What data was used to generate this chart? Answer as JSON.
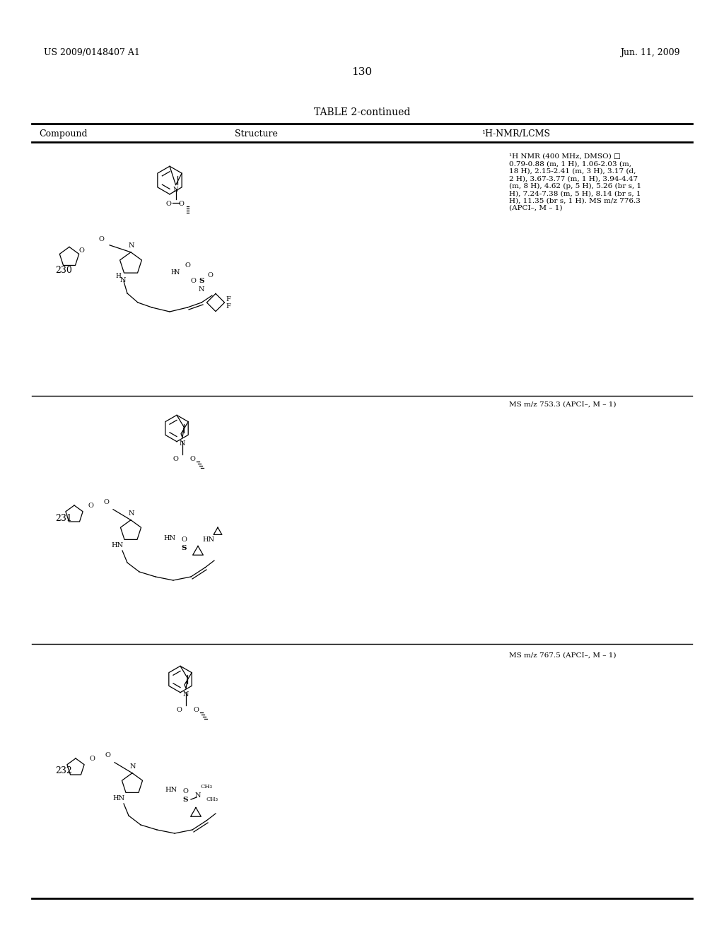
{
  "page_number": "130",
  "header_left": "US 2009/0148407 A1",
  "header_right": "Jun. 11, 2009",
  "table_title": "TABLE 2-continued",
  "col_headers": [
    "Compound",
    "Structure",
    "¹H-NMR/LCMS"
  ],
  "background_color": "#ffffff",
  "text_color": "#000000",
  "compounds": [
    {
      "number": "230",
      "nmr_text": "¹H NMR (400 MHz, DMSO) □\n0.79-0.88 (m, 1 H), 1.06-2.03 (m,\n18 H), 2.15-2.41 (m, 3 H), 3.17 (d,\n2 H), 3.67-3.77 (m, 1 H), 3.94-4.47\n(m, 8 H), 4.62 (p, 5 H), 5.26 (br s, 1\nH), 7.24-7.38 (m, 5 H), 8.14 (br s, 1\nH), 11.35 (br s, 1 H). MS m/z 776.3\n(APCI–, M – 1)"
    },
    {
      "number": "231",
      "nmr_text": "MS m/z 753.3 (APCI–, M – 1)"
    },
    {
      "number": "232",
      "nmr_text": "MS m/z 767.5 (APCI–, M – 1)"
    }
  ],
  "image_paths": {
    "230": "compound_230.png",
    "231": "compound_231.png",
    "232": "compound_232.png"
  }
}
